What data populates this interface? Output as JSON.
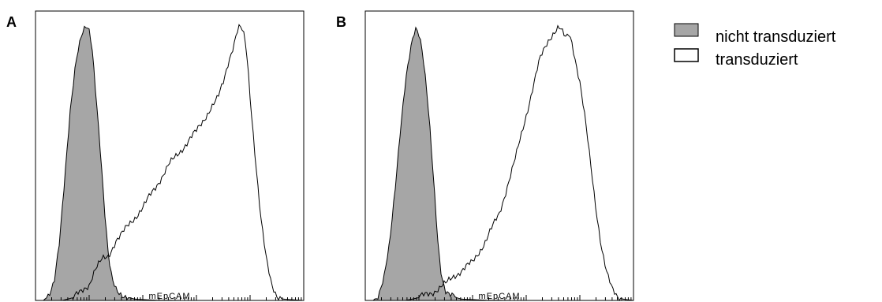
{
  "chart_data": [
    {
      "type": "area",
      "panel_label": "A",
      "xlabel": "mEpCAM",
      "ylabel": "",
      "x_scale": "log",
      "xlim": [
        0,
        100
      ],
      "ylim": [
        0,
        100
      ],
      "series": [
        {
          "name": "nicht transduziert",
          "fill": "#a6a6a6",
          "x": [
            0,
            3,
            5,
            7,
            9,
            11,
            13,
            15,
            16,
            17,
            18,
            19,
            20,
            21,
            22,
            23,
            24,
            25,
            26,
            27,
            28,
            29,
            30,
            31,
            33,
            35,
            37,
            40,
            45,
            55,
            100
          ],
          "y": [
            0,
            0,
            2,
            8,
            22,
            45,
            70,
            88,
            93,
            97,
            99,
            100,
            98,
            93,
            82,
            70,
            58,
            44,
            30,
            18,
            10,
            6,
            4,
            3,
            2,
            1,
            0.5,
            0.3,
            0.1,
            0,
            0
          ]
        },
        {
          "name": "transduziert",
          "fill": "#ffffff",
          "x": [
            0,
            10,
            14,
            17,
            20,
            22,
            25,
            27,
            30,
            32,
            35,
            40,
            45,
            50,
            55,
            60,
            65,
            68,
            70,
            72,
            74,
            75,
            76,
            77,
            78,
            79,
            80,
            82,
            84,
            86,
            88,
            90,
            92,
            100
          ],
          "y": [
            0,
            0,
            1,
            3,
            6,
            11,
            15,
            16,
            22,
            24,
            28,
            34,
            42,
            50,
            56,
            62,
            70,
            74,
            80,
            88,
            94,
            98,
            100,
            99,
            96,
            88,
            75,
            52,
            30,
            15,
            6,
            2,
            0.5,
            0
          ]
        }
      ]
    },
    {
      "type": "area",
      "panel_label": "B",
      "xlabel": "mEpCAM",
      "ylabel": "",
      "x_scale": "log",
      "xlim": [
        0,
        100
      ],
      "ylim": [
        0,
        100
      ],
      "series": [
        {
          "name": "nicht transduziert",
          "fill": "#a6a6a6",
          "x": [
            0,
            3,
            5,
            7,
            9,
            11,
            13,
            15,
            17,
            18,
            19,
            20,
            21,
            22,
            23,
            24,
            25,
            26,
            27,
            28,
            29,
            30,
            31,
            32,
            34,
            36,
            40,
            45,
            55,
            100
          ],
          "y": [
            0,
            0,
            2,
            8,
            20,
            40,
            62,
            80,
            92,
            97,
            100,
            98,
            94,
            86,
            76,
            64,
            50,
            36,
            22,
            12,
            7,
            4,
            3,
            2,
            1,
            0.5,
            0.3,
            0.1,
            0,
            0
          ]
        },
        {
          "name": "transduziert",
          "fill": "#ffffff",
          "x": [
            0,
            15,
            20,
            25,
            30,
            33,
            36,
            40,
            45,
            50,
            53,
            56,
            59,
            62,
            65,
            68,
            70,
            72,
            73,
            74,
            75,
            76,
            77,
            78,
            80,
            82,
            84,
            86,
            88,
            90,
            92,
            94,
            96,
            100
          ],
          "y": [
            0,
            0,
            1,
            3,
            6,
            9,
            11,
            14,
            22,
            32,
            42,
            52,
            64,
            76,
            88,
            95,
            98,
            100,
            99,
            97,
            96,
            98,
            95,
            90,
            80,
            66,
            50,
            34,
            20,
            10,
            4,
            1.5,
            0.5,
            0
          ]
        }
      ]
    }
  ],
  "legend": {
    "items": [
      {
        "label": "nicht transduziert",
        "swatch": "#a6a6a6"
      },
      {
        "label": "transduziert",
        "swatch": "#ffffff"
      }
    ]
  }
}
